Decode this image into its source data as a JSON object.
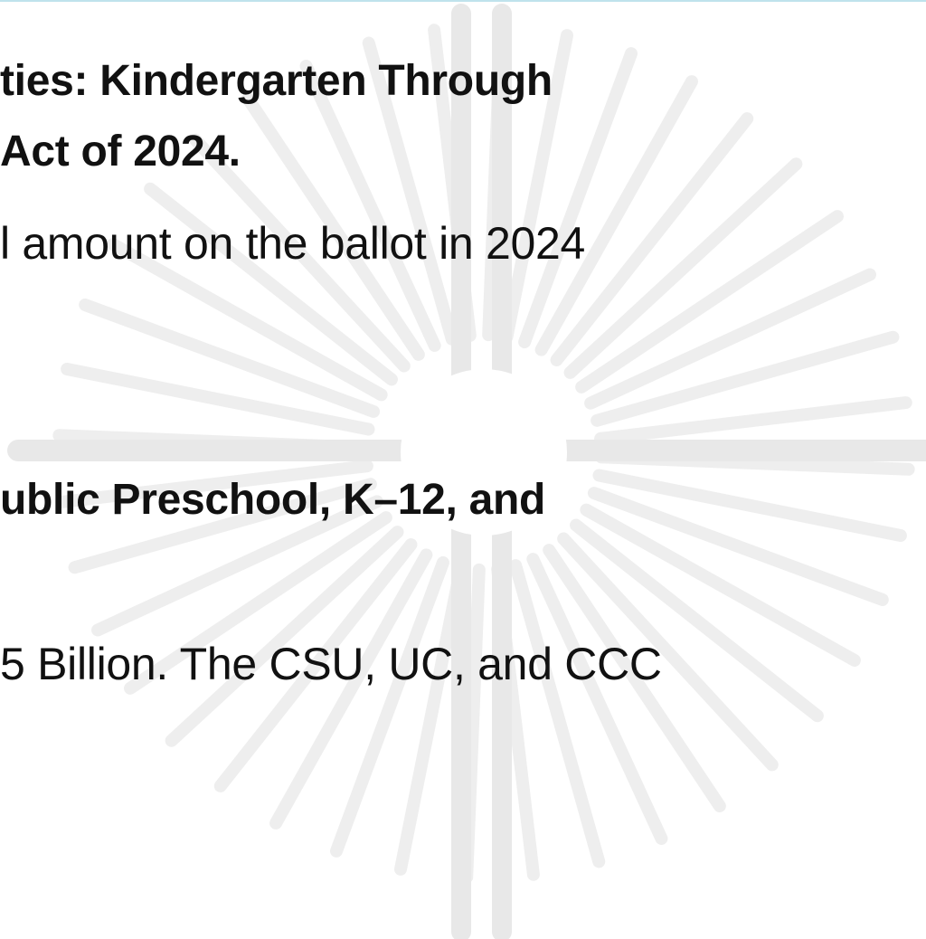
{
  "slide": {
    "lines": [
      "ties: Kindergarten Through",
      " Act of 2024.",
      "l amount on the ballot in 2024",
      "ublic Preschool, K–12, and",
      " 5 Billion. The CSU, UC, and CCC"
    ]
  },
  "watermark": {
    "icon": "sunburst-cross-icon",
    "color": "#eeeeee"
  }
}
